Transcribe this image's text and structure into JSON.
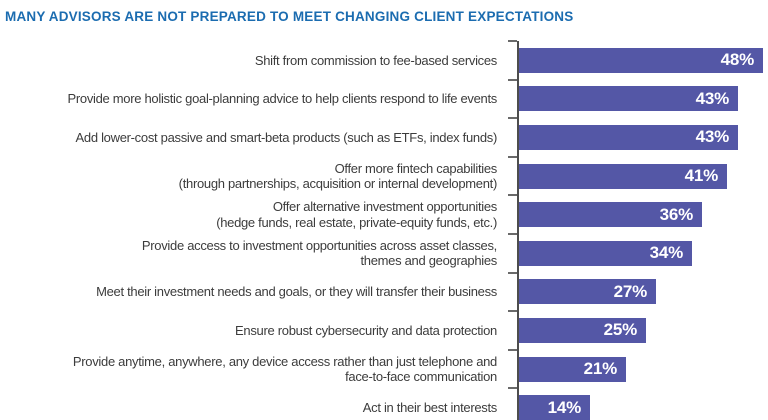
{
  "title": "MANY ADVISORS ARE NOT PREPARED TO MEET CHANGING CLIENT EXPECTATIONS",
  "chart_data": {
    "type": "bar",
    "orientation": "horizontal",
    "title": "MANY ADVISORS ARE NOT PREPARED TO MEET CHANGING CLIENT EXPECTATIONS",
    "unit": "%",
    "xlim": [
      0,
      48
    ],
    "grid": false,
    "legend": "none",
    "bar_color": "#5457a6",
    "title_color": "#1b6cb0",
    "axis_color": "#4d4d4d",
    "label_color": "#3c3c3c",
    "value_label_color": "#ffffff",
    "categories": [
      "Shift from commission to fee-based services",
      "Provide more holistic goal-planning advice to help clients respond to life events",
      "Add lower-cost passive and smart-beta products (such as ETFs, index funds)",
      "Offer more fintech capabilities (through partnerships, acquisition or internal development)",
      "Offer alternative investment opportunities (hedge funds, real estate, private-equity funds, etc.)",
      "Provide access to investment opportunities across asset classes, themes and geographies",
      "Meet their investment needs and goals, or they will transfer their business",
      "Ensure robust cybersecurity and data protection",
      "Provide anytime, anywhere, any device access rather than just telephone and face-to-face communication",
      "Act in their best interests"
    ],
    "category_lines": [
      [
        "Shift from commission to fee-based services"
      ],
      [
        "Provide more holistic goal-planning advice to help clients respond to life events"
      ],
      [
        "Add lower-cost passive and smart-beta products (such as ETFs, index funds)"
      ],
      [
        "Offer more fintech capabilities",
        "(through partnerships, acquisition or internal development)"
      ],
      [
        "Offer alternative investment opportunities",
        "(hedge funds, real estate, private-equity funds, etc.)"
      ],
      [
        "Provide access to investment opportunities across asset classes,",
        "themes and geographies"
      ],
      [
        "Meet their investment needs and goals, or they will transfer their business"
      ],
      [
        "Ensure robust cybersecurity and data protection"
      ],
      [
        "Provide anytime, anywhere, any device access rather than just telephone and",
        "face-to-face communication"
      ],
      [
        "Act in their best interests"
      ]
    ],
    "values": [
      48,
      43,
      43,
      41,
      36,
      34,
      27,
      25,
      21,
      14
    ],
    "value_labels": [
      "48%",
      "43%",
      "43%",
      "41%",
      "36%",
      "34%",
      "27%",
      "25%",
      "21%",
      "14%"
    ]
  }
}
